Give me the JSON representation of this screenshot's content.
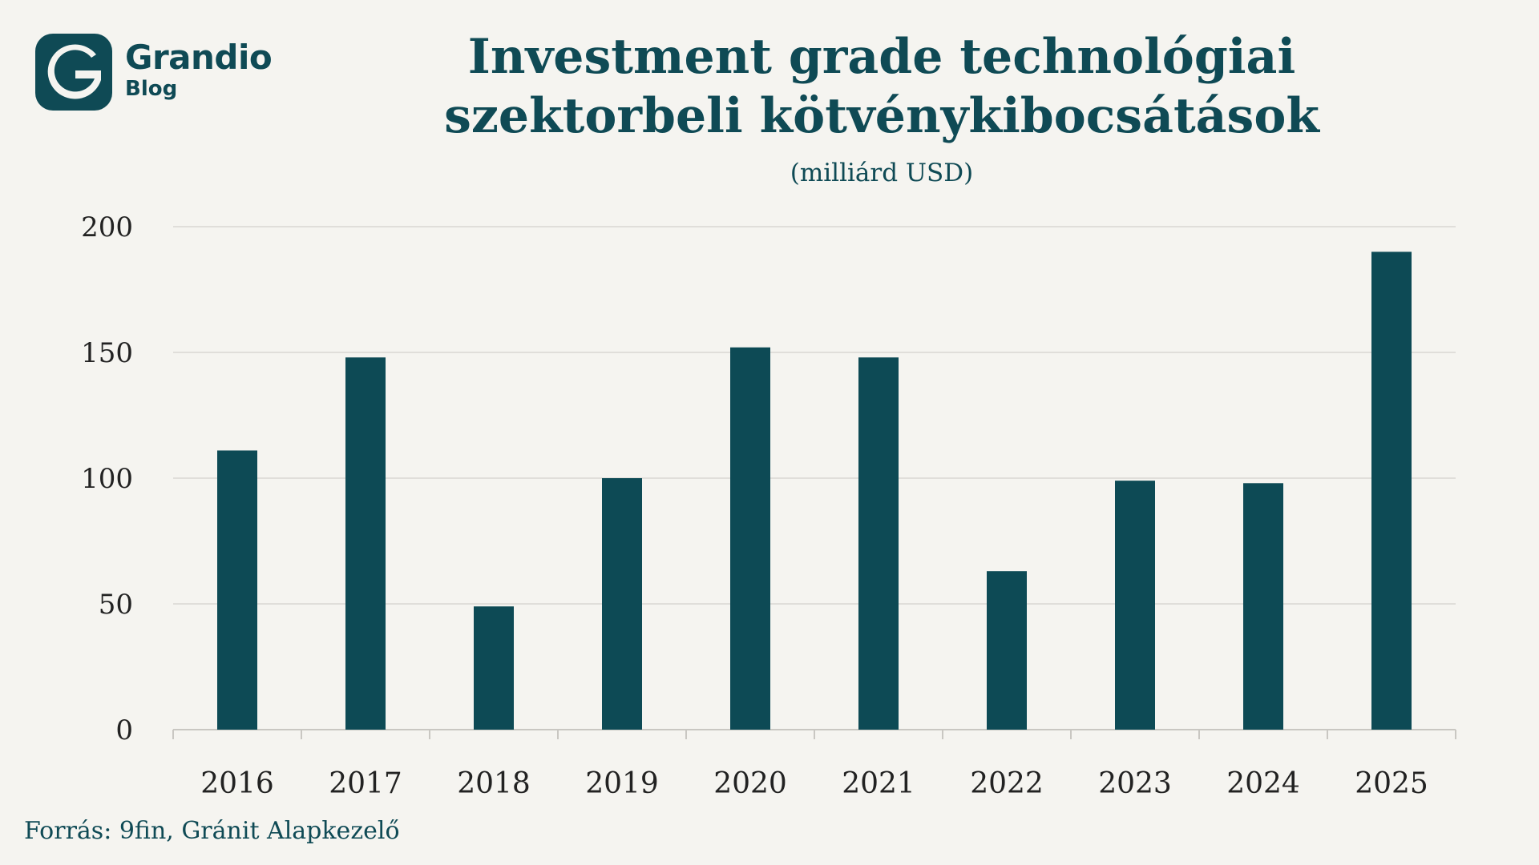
{
  "brand": {
    "name": "Grandio",
    "sub": "Blog",
    "color": "#0f4a55"
  },
  "chart_data": {
    "type": "bar",
    "title": "Investment grade technológiai szektorbeli kötvénykibocsátások",
    "subtitle": "(milliárd USD)",
    "categories": [
      "2016",
      "2017",
      "2018",
      "2019",
      "2020",
      "2021",
      "2022",
      "2023",
      "2024",
      "2025"
    ],
    "values": [
      111,
      148,
      49,
      100,
      152,
      148,
      63,
      99,
      98,
      190
    ],
    "ylim": [
      0,
      200
    ],
    "yticks": [
      0,
      50,
      100,
      150,
      200
    ],
    "xlabel": "",
    "ylabel": "",
    "grid": true,
    "bar_color": "#0d4a55"
  },
  "source": "Forrás: 9fin, Gránit Alapkezelő"
}
